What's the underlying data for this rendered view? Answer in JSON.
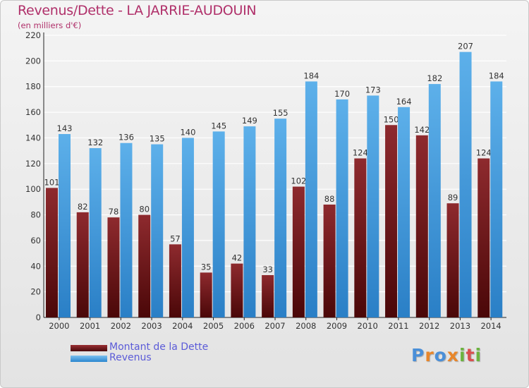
{
  "header": {
    "title": "Revenus/Dette - LA JARRIE-AUDOUIN",
    "subtitle": "(en milliers d'€)"
  },
  "chart_data": {
    "type": "bar",
    "title": "Revenus/Dette - LA JARRIE-AUDOUIN",
    "ylabel": "(en milliers d'€)",
    "xlabel": "",
    "ylim": [
      0,
      220
    ],
    "yticks": [
      0,
      20,
      40,
      60,
      80,
      100,
      120,
      140,
      160,
      180,
      200,
      220
    ],
    "grid": true,
    "categories": [
      "2000",
      "2001",
      "2002",
      "2003",
      "2004",
      "2005",
      "2006",
      "2007",
      "2008",
      "2009",
      "2010",
      "2011",
      "2012",
      "2013",
      "2014"
    ],
    "series": [
      {
        "name": "Montant de la Dette",
        "color": "#7a1f22",
        "values": [
          101,
          82,
          78,
          80,
          57,
          35,
          42,
          33,
          102,
          88,
          124,
          150,
          142,
          89,
          124
        ]
      },
      {
        "name": "Revenus",
        "color": "#4aa3e3",
        "values": [
          143,
          132,
          136,
          135,
          140,
          145,
          149,
          155,
          184,
          170,
          173,
          164,
          182,
          207,
          184
        ]
      }
    ]
  },
  "legend": {
    "position": "bottom-left",
    "items": [
      {
        "label": "Montant de la Dette",
        "color": "#6b1417"
      },
      {
        "label": "Revenus",
        "color": "#4aa3e3"
      }
    ]
  },
  "brand": {
    "letters": [
      "P",
      "r",
      "o",
      "x",
      "i",
      "t",
      "i"
    ],
    "colors": [
      "#4a8fd8",
      "#e8862a",
      "#4a8fd8",
      "#e8862a",
      "#6cb33f",
      "#d94f4f",
      "#6cb33f"
    ]
  }
}
